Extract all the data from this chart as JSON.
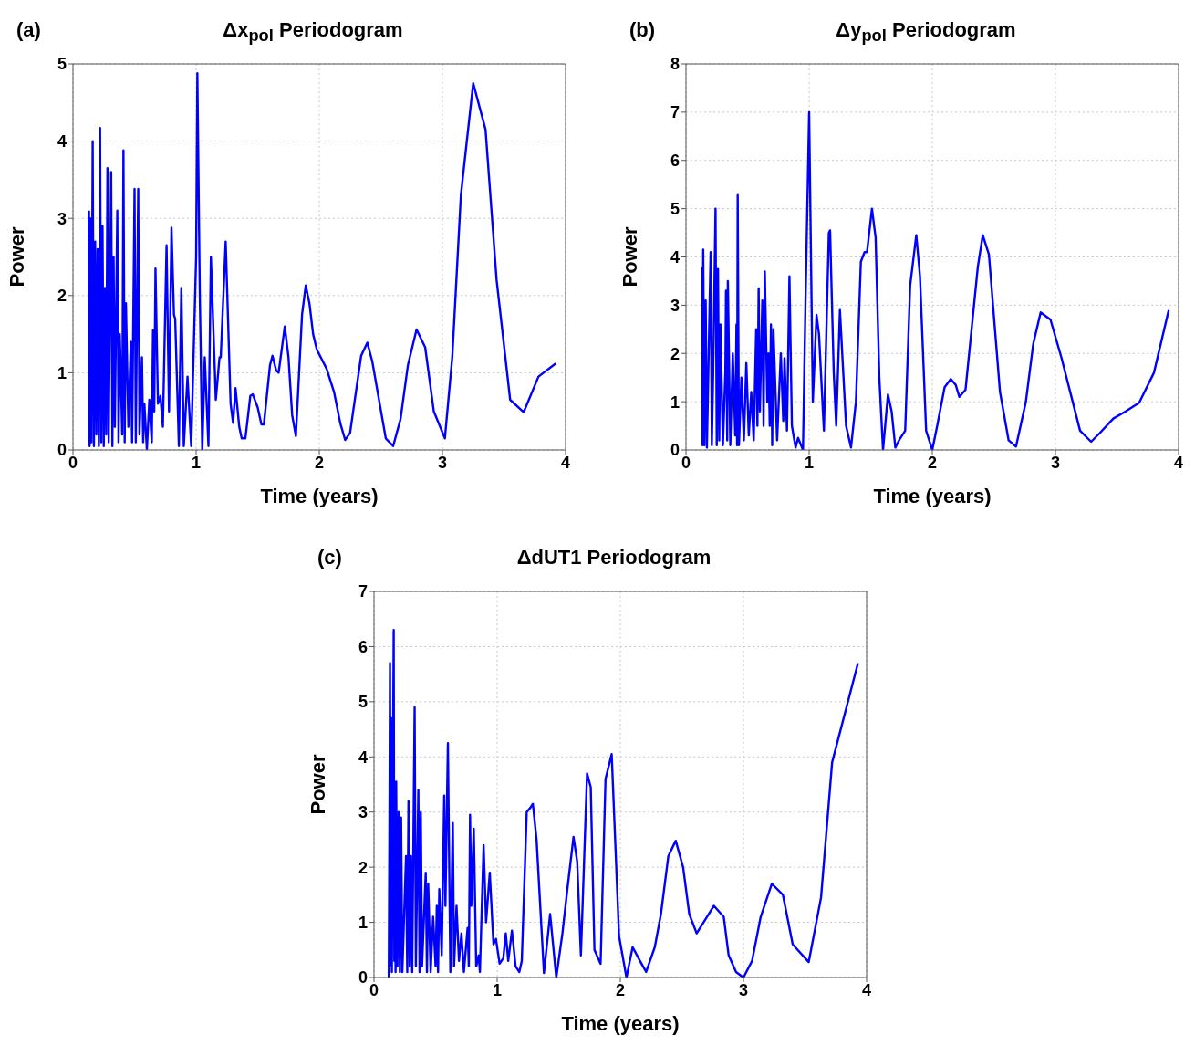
{
  "chart_data": [
    {
      "type": "line",
      "title": "Δx$_{pol}$ Periodogram",
      "annotations": [
        "(a)"
      ],
      "xlabel": "Time (years)",
      "ylabel": "Power",
      "xlim": [
        0,
        4
      ],
      "xticks": [
        0,
        1,
        2,
        3,
        4
      ],
      "ylim": [
        0,
        5
      ],
      "yticks": [
        0,
        1,
        2,
        3,
        4,
        5
      ],
      "grid": true,
      "legend": false,
      "marker": "none",
      "line_style": "solid",
      "series": [
        {
          "color": "#0000ff",
          "x": [
            0.13,
            0.135,
            0.14,
            0.15,
            0.16,
            0.17,
            0.18,
            0.19,
            0.2,
            0.21,
            0.22,
            0.23,
            0.24,
            0.25,
            0.26,
            0.27,
            0.28,
            0.29,
            0.31,
            0.32,
            0.33,
            0.34,
            0.36,
            0.37,
            0.38,
            0.4,
            0.41,
            0.42,
            0.43,
            0.45,
            0.47,
            0.48,
            0.5,
            0.51,
            0.53,
            0.54,
            0.56,
            0.57,
            0.58,
            0.6,
            0.62,
            0.64,
            0.65,
            0.66,
            0.67,
            0.69,
            0.71,
            0.73,
            0.76,
            0.78,
            0.8,
            0.82,
            0.83,
            0.86,
            0.88,
            0.9,
            0.93,
            0.96,
            1.0,
            1.01,
            1.03,
            1.05,
            1.07,
            1.1,
            1.12,
            1.16,
            1.19,
            1.2,
            1.24,
            1.28,
            1.3,
            1.32,
            1.35,
            1.37,
            1.4,
            1.44,
            1.46,
            1.5,
            1.53,
            1.55,
            1.6,
            1.62,
            1.65,
            1.67,
            1.72,
            1.75,
            1.78,
            1.81,
            1.86,
            1.89,
            1.92,
            1.95,
            1.98,
            2.06,
            2.12,
            2.17,
            2.21,
            2.25,
            2.34,
            2.39,
            2.43,
            2.54,
            2.6,
            2.66,
            2.72,
            2.79,
            2.86,
            2.93,
            3.02,
            3.08,
            3.15,
            3.25,
            3.35,
            3.44,
            3.55,
            3.66,
            3.78,
            3.92
          ],
          "values": [
            3.1,
            0.05,
            3.0,
            0.1,
            4.0,
            0.05,
            2.7,
            0.2,
            2.6,
            0.05,
            4.17,
            0.1,
            2.9,
            0.05,
            2.1,
            0.2,
            3.65,
            0.1,
            3.6,
            0.05,
            2.5,
            0.3,
            3.1,
            0.1,
            1.5,
            0.2,
            3.88,
            0.1,
            1.9,
            0.3,
            1.4,
            0.1,
            3.38,
            0.1,
            3.38,
            0.2,
            1.2,
            0.1,
            0.6,
            0.0,
            0.65,
            0.1,
            1.55,
            0.5,
            2.35,
            0.6,
            0.7,
            0.3,
            2.65,
            0.5,
            2.88,
            1.75,
            1.7,
            0.05,
            2.1,
            0.05,
            0.95,
            0.05,
            2.5,
            4.88,
            2.0,
            0.0,
            1.2,
            0.05,
            2.5,
            0.65,
            1.2,
            1.2,
            2.7,
            0.6,
            0.35,
            0.8,
            0.3,
            0.15,
            0.15,
            0.7,
            0.72,
            0.55,
            0.33,
            0.33,
            1.1,
            1.22,
            1.03,
            1.0,
            1.6,
            1.2,
            0.45,
            0.18,
            1.75,
            2.13,
            1.9,
            1.5,
            1.3,
            1.05,
            0.75,
            0.35,
            0.13,
            0.22,
            1.22,
            1.39,
            1.15,
            0.15,
            0.05,
            0.4,
            1.1,
            1.56,
            1.33,
            0.5,
            0.15,
            1.2,
            3.3,
            4.75,
            4.15,
            2.2,
            0.65,
            0.49,
            0.95,
            1.12
          ]
        }
      ]
    },
    {
      "type": "line",
      "title": "Δy$_{pol}$ Periodogram",
      "annotations": [
        "(b)"
      ],
      "xlabel": "Time (years)",
      "ylabel": "Power",
      "xlim": [
        0,
        4
      ],
      "xticks": [
        0,
        1,
        2,
        3,
        4
      ],
      "ylim": [
        0,
        8
      ],
      "yticks": [
        0,
        1,
        2,
        3,
        4,
        5,
        6,
        7,
        8
      ],
      "grid": true,
      "legend": false,
      "marker": "none",
      "line_style": "solid",
      "series": [
        {
          "color": "#0000ff",
          "x": [
            0.13,
            0.135,
            0.14,
            0.15,
            0.16,
            0.17,
            0.2,
            0.21,
            0.22,
            0.24,
            0.25,
            0.26,
            0.27,
            0.28,
            0.3,
            0.32,
            0.325,
            0.335,
            0.34,
            0.36,
            0.38,
            0.4,
            0.41,
            0.415,
            0.42,
            0.43,
            0.45,
            0.47,
            0.49,
            0.51,
            0.53,
            0.55,
            0.57,
            0.58,
            0.59,
            0.6,
            0.62,
            0.63,
            0.64,
            0.66,
            0.67,
            0.68,
            0.69,
            0.7,
            0.71,
            0.74,
            0.77,
            0.79,
            0.8,
            0.82,
            0.84,
            0.86,
            0.89,
            0.91,
            0.95,
            0.97,
            1.0,
            1.03,
            1.06,
            1.08,
            1.12,
            1.16,
            1.17,
            1.2,
            1.22,
            1.25,
            1.3,
            1.34,
            1.38,
            1.42,
            1.45,
            1.47,
            1.51,
            1.54,
            1.57,
            1.6,
            1.64,
            1.67,
            1.7,
            1.73,
            1.78,
            1.82,
            1.87,
            1.9,
            1.95,
            2.0,
            2.04,
            2.1,
            2.15,
            2.19,
            2.22,
            2.27,
            2.37,
            2.41,
            2.46,
            2.55,
            2.62,
            2.68,
            2.76,
            2.82,
            2.88,
            2.96,
            3.05,
            3.14,
            3.2,
            3.29,
            3.36,
            3.47,
            3.57,
            3.68,
            3.8,
            3.92
          ],
          "values": [
            3.8,
            0.1,
            4.15,
            0.1,
            3.1,
            0.05,
            4.1,
            0.1,
            1.5,
            5.0,
            0.1,
            3.75,
            0.2,
            2.6,
            0.1,
            1.65,
            3.3,
            0.2,
            3.5,
            0.1,
            2.0,
            0.3,
            2.6,
            0.1,
            5.28,
            0.1,
            1.5,
            0.2,
            1.8,
            0.3,
            1.2,
            0.2,
            2.5,
            0.5,
            3.35,
            0.8,
            3.1,
            0.5,
            3.7,
            1.0,
            2.0,
            0.5,
            2.6,
            0.1,
            2.5,
            0.2,
            2.0,
            0.6,
            1.9,
            0.4,
            3.6,
            0.5,
            0.05,
            0.25,
            0.0,
            3.0,
            7.0,
            1.0,
            2.8,
            2.4,
            0.4,
            4.5,
            4.55,
            1.6,
            0.5,
            2.9,
            0.5,
            0.05,
            1.0,
            3.9,
            4.1,
            4.1,
            5.0,
            4.4,
            1.5,
            0.0,
            1.15,
            0.8,
            0.05,
            0.2,
            0.4,
            3.4,
            4.45,
            3.6,
            0.4,
            0.0,
            0.5,
            1.3,
            1.47,
            1.35,
            1.1,
            1.25,
            3.8,
            4.45,
            4.05,
            1.2,
            0.2,
            0.07,
            1.0,
            2.2,
            2.85,
            2.7,
            1.9,
            1.0,
            0.4,
            0.17,
            0.35,
            0.65,
            0.8,
            0.98,
            1.6,
            2.9
          ]
        }
      ]
    },
    {
      "type": "line",
      "title": "ΔdUT1 Periodogram",
      "annotations": [
        "(c)"
      ],
      "xlabel": "Time (years)",
      "ylabel": "Power",
      "xlim": [
        0,
        4
      ],
      "xticks": [
        0,
        1,
        2,
        3,
        4
      ],
      "ylim": [
        0,
        7
      ],
      "yticks": [
        0,
        1,
        2,
        3,
        4,
        5,
        6,
        7
      ],
      "grid": true,
      "legend": false,
      "marker": "none",
      "line_style": "solid",
      "series": [
        {
          "color": "#0000ff",
          "x": [
            0.12,
            0.125,
            0.13,
            0.135,
            0.14,
            0.145,
            0.16,
            0.165,
            0.17,
            0.175,
            0.18,
            0.19,
            0.2,
            0.21,
            0.22,
            0.23,
            0.26,
            0.27,
            0.28,
            0.29,
            0.3,
            0.31,
            0.33,
            0.34,
            0.36,
            0.37,
            0.38,
            0.39,
            0.42,
            0.43,
            0.44,
            0.46,
            0.48,
            0.5,
            0.51,
            0.52,
            0.53,
            0.55,
            0.57,
            0.58,
            0.6,
            0.62,
            0.64,
            0.65,
            0.67,
            0.69,
            0.71,
            0.73,
            0.76,
            0.77,
            0.78,
            0.79,
            0.81,
            0.83,
            0.85,
            0.86,
            0.89,
            0.91,
            0.94,
            0.97,
            0.99,
            1.02,
            1.05,
            1.07,
            1.09,
            1.12,
            1.15,
            1.18,
            1.2,
            1.24,
            1.27,
            1.29,
            1.32,
            1.38,
            1.43,
            1.48,
            1.53,
            1.57,
            1.62,
            1.65,
            1.68,
            1.73,
            1.76,
            1.79,
            1.84,
            1.88,
            1.93,
            1.99,
            2.05,
            2.1,
            2.16,
            2.21,
            2.28,
            2.33,
            2.39,
            2.45,
            2.51,
            2.56,
            2.62,
            2.69,
            2.76,
            2.84,
            2.88,
            2.94,
            3.0,
            3.07,
            3.14,
            3.23,
            3.32,
            3.4,
            3.53,
            3.63,
            3.72,
            3.93
          ],
          "values": [
            0.0,
            2.5,
            5.7,
            0.2,
            4.7,
            0.1,
            6.3,
            0.3,
            3.0,
            0.1,
            3.55,
            0.2,
            3.0,
            0.1,
            2.9,
            0.1,
            2.2,
            0.1,
            3.2,
            0.2,
            2.2,
            0.1,
            4.9,
            0.2,
            3.4,
            0.1,
            3.0,
            0.2,
            1.9,
            0.1,
            1.7,
            0.1,
            1.1,
            0.2,
            1.3,
            0.1,
            1.6,
            0.4,
            3.3,
            1.3,
            4.25,
            0.1,
            2.8,
            0.2,
            1.3,
            0.3,
            0.8,
            0.1,
            0.9,
            0.2,
            2.95,
            1.3,
            2.7,
            0.2,
            0.4,
            0.1,
            2.4,
            1.0,
            1.9,
            0.6,
            0.7,
            0.25,
            0.35,
            0.8,
            0.3,
            0.85,
            0.2,
            0.1,
            0.3,
            3.0,
            3.08,
            3.15,
            2.5,
            0.08,
            1.15,
            0.0,
            0.8,
            1.6,
            2.55,
            2.1,
            0.4,
            3.7,
            3.45,
            0.5,
            0.25,
            3.6,
            4.05,
            0.75,
            0.0,
            0.55,
            0.3,
            0.1,
            0.55,
            1.15,
            2.2,
            2.48,
            2.0,
            1.15,
            0.8,
            1.05,
            1.3,
            1.1,
            0.4,
            0.1,
            0.0,
            0.3,
            1.1,
            1.7,
            1.5,
            0.6,
            0.28,
            1.45,
            3.9,
            5.7
          ]
        }
      ]
    }
  ]
}
